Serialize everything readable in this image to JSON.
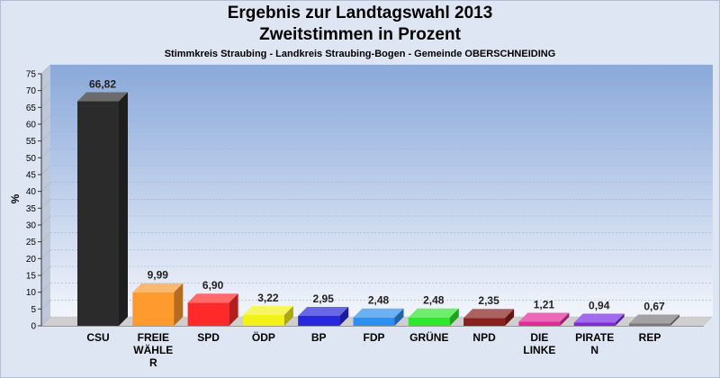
{
  "header": {
    "title": "Ergebnis zur Landtagswahl 2013",
    "subtitle": "Zweitstimmen in Prozent",
    "context": "Stimmkreis Straubing - Landkreis Straubing-Bogen - Gemeinde OBERSCHNEIDING"
  },
  "chart_data": {
    "type": "bar",
    "title": "Ergebnis zur Landtagswahl 2013",
    "subtitle": "Zweitstimmen in Prozent",
    "ylabel": "%",
    "xlabel": "",
    "ylim": [
      0,
      75
    ],
    "yticks": [
      0,
      5,
      10,
      15,
      20,
      25,
      30,
      35,
      40,
      45,
      50,
      55,
      60,
      65,
      70,
      75
    ],
    "grid": true,
    "legend": "none",
    "categories": [
      [
        "CSU"
      ],
      [
        "FREIE",
        "WÄHLE",
        "R"
      ],
      [
        "SPD"
      ],
      [
        "ÖDP"
      ],
      [
        "BP"
      ],
      [
        "FDP"
      ],
      [
        "GRÜNE"
      ],
      [
        "NPD"
      ],
      [
        "DIE",
        "LINKE"
      ],
      [
        "PIRATE",
        "N"
      ],
      [
        "REP"
      ]
    ],
    "values": [
      66.82,
      9.99,
      6.9,
      3.22,
      2.95,
      2.48,
      2.48,
      2.35,
      1.21,
      0.94,
      0.67
    ],
    "value_labels": [
      "66,82",
      "9,99",
      "6,90",
      "3,22",
      "2,95",
      "2,48",
      "2,48",
      "2,35",
      "1,21",
      "0,94",
      "0,67"
    ],
    "colors": [
      "#2b2b2b",
      "#ff9a2e",
      "#ff2a2a",
      "#f2f21a",
      "#2727dd",
      "#2f8ff0",
      "#2ee82e",
      "#8a1f1f",
      "#e22a9a",
      "#7a2be0",
      "#7a7a7a"
    ]
  }
}
